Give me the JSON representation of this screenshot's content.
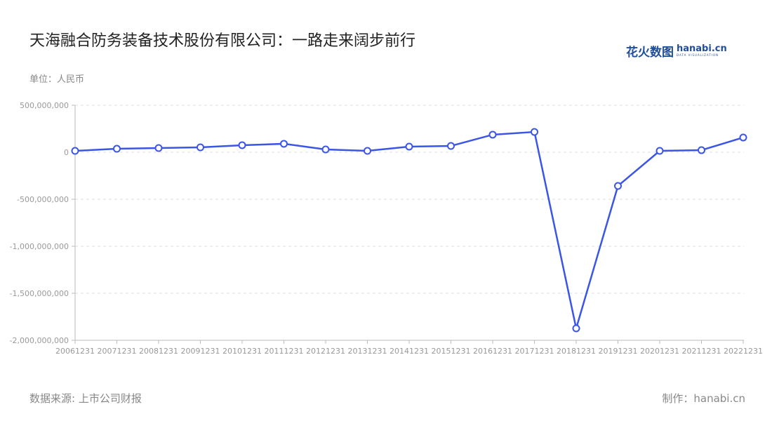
{
  "title": "天海融合防务装备技术股份有限公司：一路走来阔步前行",
  "logo": {
    "cn": "花火数图",
    "en": "hanabi.cn",
    "sub": "DATA VISUALIZATION"
  },
  "source": "数据来源: 上市公司财报",
  "maker": "制作：hanabi.cn",
  "colors": {
    "line": "#3b55e6",
    "grid": "#dddddd",
    "axis": "#bbbbbb"
  },
  "chart_data": {
    "type": "line",
    "title": "天海融合防务装备技术股份有限公司：一路走来阔步前行",
    "ylabel": "单位：人民币",
    "ylim": [
      -2000000000,
      500000000
    ],
    "yticks": [
      500000000,
      0,
      -500000000,
      -1000000000,
      -1500000000,
      -2000000000
    ],
    "ytick_labels": [
      "500,000,000",
      "0",
      "-500,000,000",
      "-1,000,000,000",
      "-1,500,000,000",
      "-2,000,000,000"
    ],
    "grid": true,
    "categories": [
      "20061231",
      "20071231",
      "20081231",
      "20091231",
      "20101231",
      "20111231",
      "20121231",
      "20131231",
      "20141231",
      "20151231",
      "20161231",
      "20171231",
      "20181231",
      "20191231",
      "20201231",
      "20211231",
      "20221231"
    ],
    "values": [
      15000000,
      37000000,
      45000000,
      52000000,
      75000000,
      90000000,
      30000000,
      15000000,
      60000000,
      67000000,
      187000000,
      216000000,
      -1873000000,
      -358000000,
      15000000,
      22000000,
      157000000
    ]
  }
}
